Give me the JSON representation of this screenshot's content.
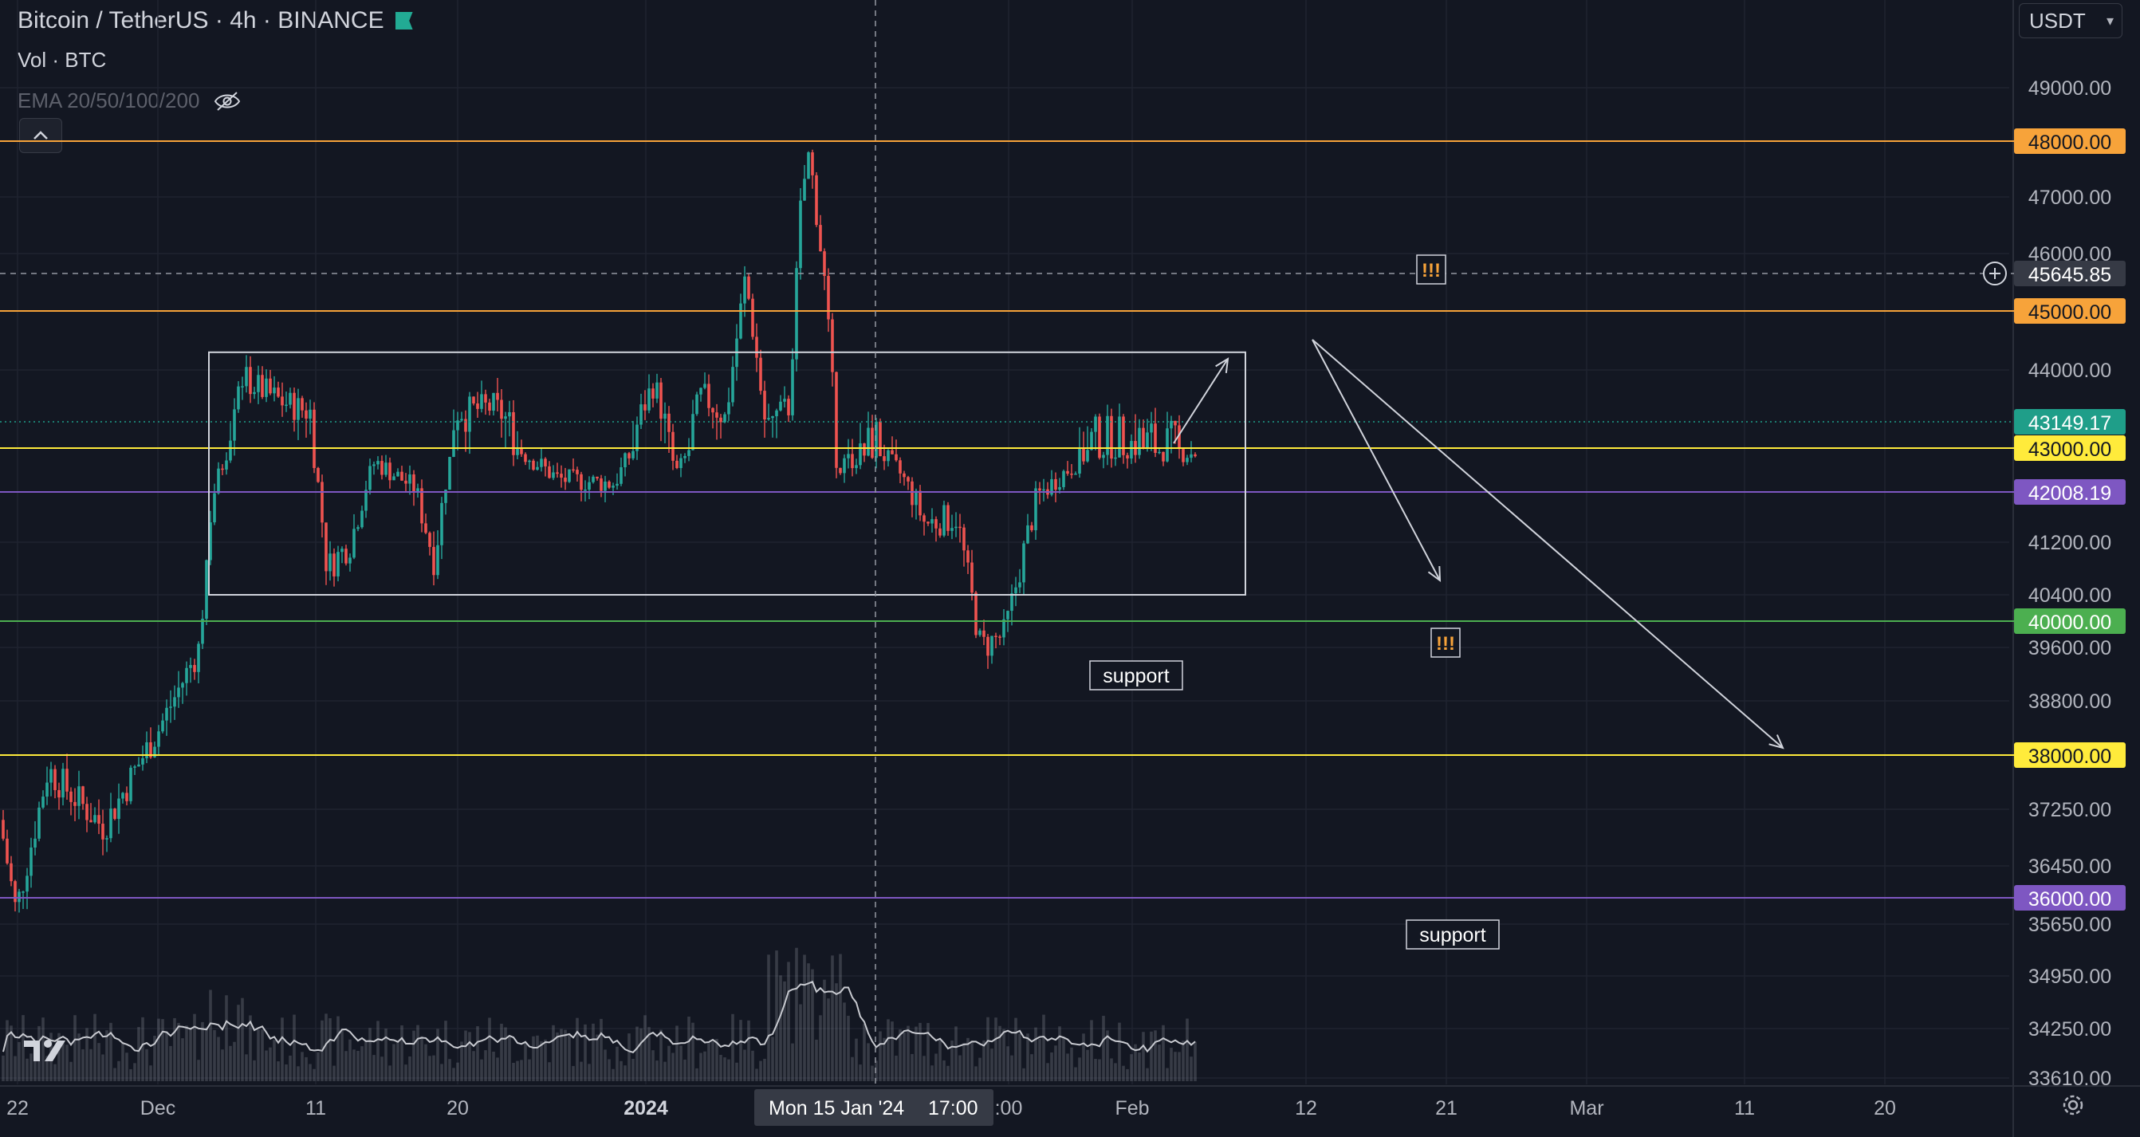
{
  "header": {
    "symbol_title": "Bitcoin / TetherUS · 4h · BINANCE",
    "volume_label": "Vol · BTC",
    "ema_label": "EMA 20/50/100/200"
  },
  "toolbar": {
    "currency": "USDT",
    "collapse_icon": "chevron-up-icon",
    "hide_icon": "eye-off-icon",
    "settings_icon": "gear-icon",
    "logo": "TV"
  },
  "colors": {
    "background": "#131722",
    "grid": "#1f2330",
    "up_candle": "#26a69a",
    "down_candle": "#ef5350",
    "orange_level": "#f7a33a",
    "yellow_level": "#ffeb3b",
    "green_level": "#4caf50",
    "purple_level": "#7e57c2",
    "teal_price": "#1f9e89"
  },
  "chart_data": {
    "type": "candlestick",
    "symbol": "BTCUSDT",
    "interval": "4h",
    "y_ticks": [
      "49000.00",
      "47000.00",
      "46000.00",
      "44000.00",
      "41200.00",
      "40400.00",
      "39600.00",
      "38800.00",
      "37250.00",
      "36450.00",
      "35650.00",
      "34950.00",
      "34250.00",
      "33610.00"
    ],
    "x_ticks": [
      "22",
      "Dec",
      "11",
      "20",
      "2024",
      ":00",
      "Feb",
      "12",
      "21",
      "Mar",
      "11",
      "20"
    ],
    "crosshair": {
      "date_label": "Mon 15 Jan '24",
      "time_label": "17:00",
      "price": "45645.85"
    },
    "current_price": "43149.17",
    "horizontal_levels": [
      {
        "price": "48000.00",
        "color": "orange"
      },
      {
        "price": "45000.00",
        "color": "orange"
      },
      {
        "price": "43000.00",
        "color": "yellow"
      },
      {
        "price": "42008.19",
        "color": "purple"
      },
      {
        "price": "40000.00",
        "color": "green"
      },
      {
        "price": "38000.00",
        "color": "yellow"
      },
      {
        "price": "36000.00",
        "color": "purple"
      }
    ],
    "annotations": [
      {
        "text": "support",
        "near": "40000"
      },
      {
        "text": "support",
        "near": "36000"
      },
      {
        "text": "!!!",
        "near": "45645"
      },
      {
        "text": "!!!",
        "near": "40000"
      }
    ],
    "range_box": {
      "high": 44300,
      "low": 40400
    }
  }
}
